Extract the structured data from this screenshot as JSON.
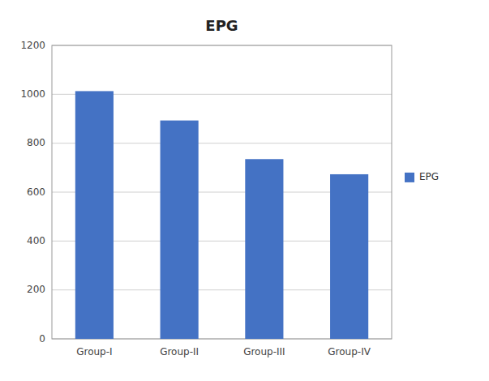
{
  "chart_data": {
    "type": "bar",
    "title": "EPG",
    "categories": [
      "Group-I",
      "Group-II",
      "Group-III",
      "Group-IV"
    ],
    "series": [
      {
        "name": "EPG",
        "color": "#4472C4",
        "values": [
          1013,
          893,
          735,
          673
        ]
      }
    ],
    "ylim": [
      0,
      1200
    ],
    "yticks": [
      0,
      200,
      400,
      600,
      800,
      1000,
      1200
    ],
    "grid": true,
    "legend": "right"
  }
}
